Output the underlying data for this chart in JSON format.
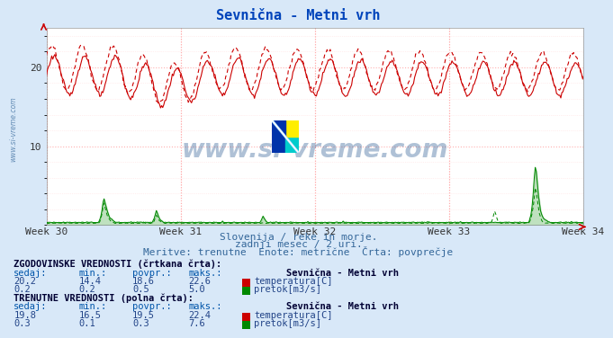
{
  "title": "Sevnična - Metni vrh",
  "bg_color": "#d8e8f8",
  "plot_bg_color": "#ffffff",
  "xlabel_weeks": [
    "Week 30",
    "Week 31",
    "Week 32",
    "Week 33",
    "Week 34"
  ],
  "ylim": [
    0,
    25
  ],
  "yticks": [
    10,
    20
  ],
  "n_points": 504,
  "temp_color": "#cc0000",
  "flow_color": "#008800",
  "grid_color": "#ffb0b0",
  "grid_minor_color": "#ffe0e0",
  "subtitle1": "Slovenija / reke in morje.",
  "subtitle2": "zadnji mesec / 2 uri.",
  "subtitle3": "Meritve: trenutne  Enote: metrične  Črta: povprečje",
  "table_title1": "ZGODOVINSKE VREDNOSTI (črtkana črta):",
  "table_title2": "TRENUTNE VREDNOSTI (polna črta):",
  "table_header": [
    "sedaj:",
    "min.:",
    "povpr.:",
    "maks.:"
  ],
  "hist_temp": [
    20.2,
    14.4,
    18.6,
    22.6
  ],
  "hist_flow": [
    0.2,
    0.2,
    0.5,
    5.0
  ],
  "curr_temp": [
    19.8,
    16.5,
    19.5,
    22.4
  ],
  "curr_flow": [
    0.3,
    0.1,
    0.3,
    7.6
  ],
  "station_name": "Sevnična - Metni vrh",
  "temp_label": "temperatura[C]",
  "flow_label": "pretok[m3/s]",
  "watermark_text": "www.si-vreme.com",
  "sidewatermark": "www.si-vreme.com",
  "logo_colors": [
    "#ffee00",
    "#00cccc",
    "#0033bb",
    "#0033bb"
  ],
  "flow_max_hist": 5.0,
  "flow_max_curr": 7.6,
  "temp_avg_hist": 18.6,
  "temp_avg_curr": 19.5
}
